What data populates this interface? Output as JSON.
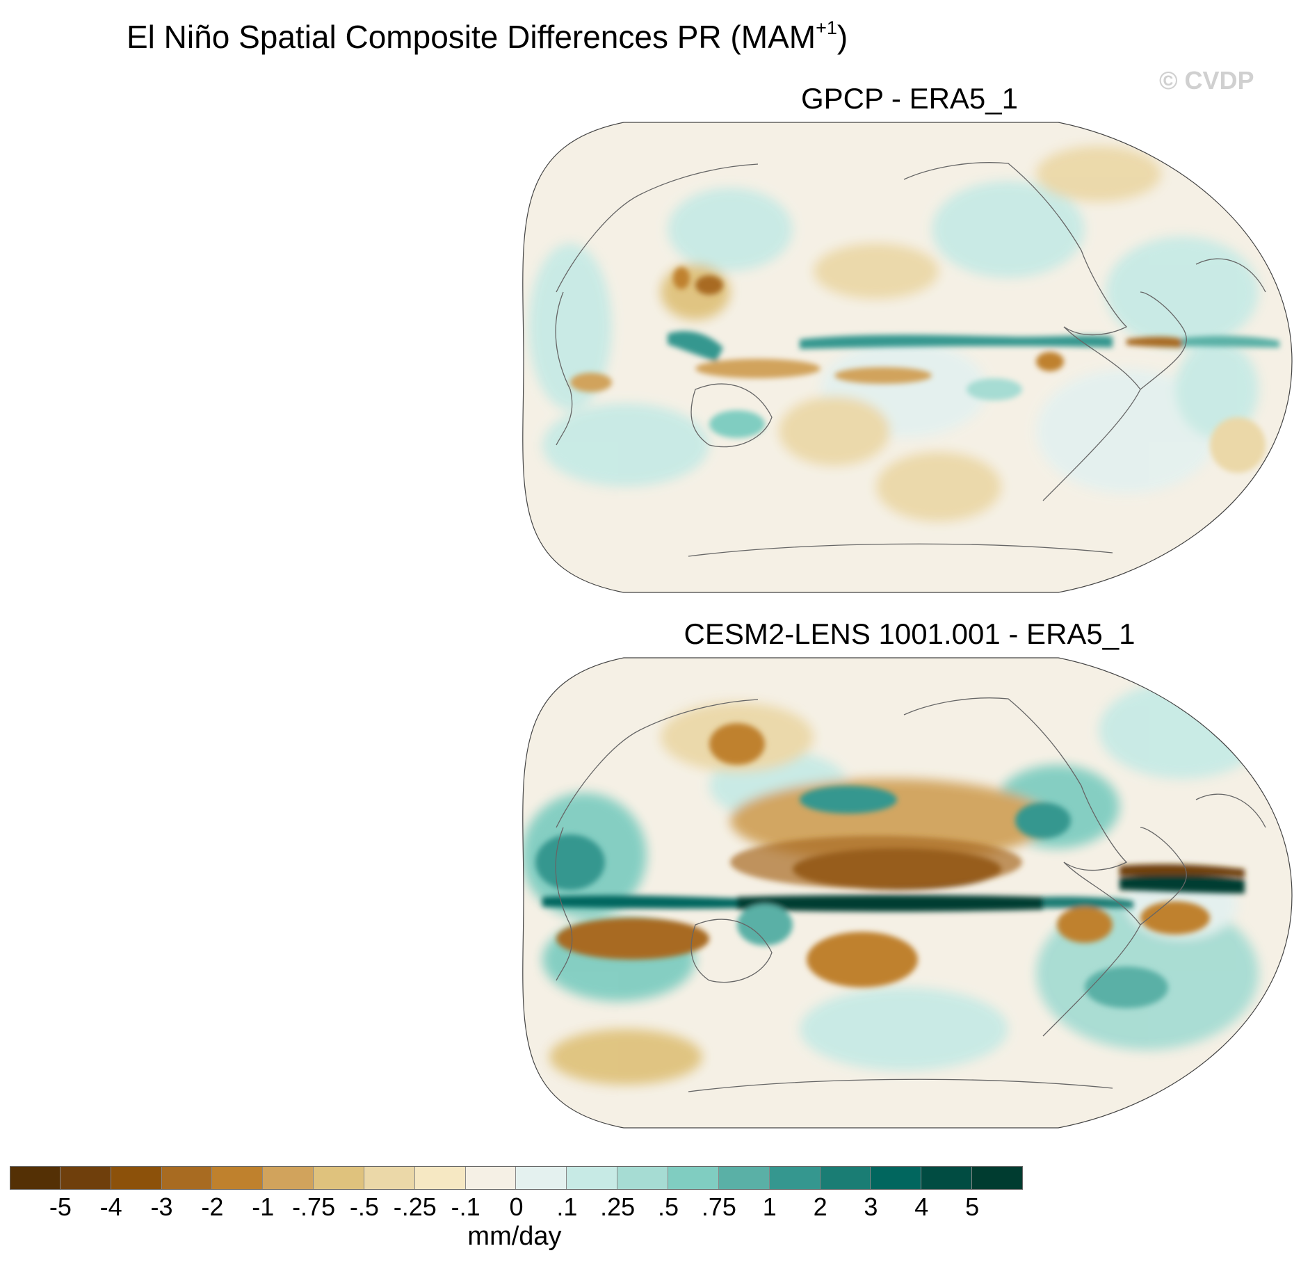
{
  "title": {
    "main": "El Niño Spatial Composite Differences PR (MAM",
    "sup": "+1",
    "close": ")"
  },
  "credit": "© CVDP",
  "panels": [
    {
      "title": "GPCP - ERA5_1"
    },
    {
      "title": "CESM2-LENS 1001.001 - ERA5_1"
    }
  ],
  "colorbar": {
    "colors": [
      "#543005",
      "#6f3f0c",
      "#8c510a",
      "#a86b21",
      "#bf812d",
      "#d1a35c",
      "#dfc27d",
      "#ebd8a8",
      "#f6e8c3",
      "#f5f0e5",
      "#e4f1ef",
      "#c7eae5",
      "#a6dcd3",
      "#80cdc1",
      "#5ab0a6",
      "#35978f",
      "#1a7d74",
      "#01665e",
      "#014c42",
      "#003c30"
    ],
    "tick_labels": [
      "-5",
      "-4",
      "-3",
      "-2",
      "-1",
      "-.75",
      "-.5",
      "-.25",
      "-.1",
      "0",
      ".1",
      ".25",
      ".5",
      ".75",
      "1",
      "2",
      "3",
      "4",
      "5"
    ],
    "units": "mm/day"
  }
}
